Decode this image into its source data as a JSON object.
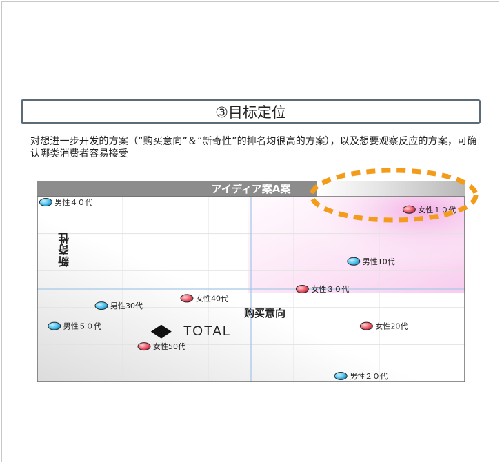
{
  "heading": "③目标定位",
  "description": "对想进一步开发的方案（“购买意向”＆“新奇性”的排名均很高的方案），以及想要观察反应的方案，可确认哪类消费者容易接受",
  "chart_data": {
    "type": "scatter",
    "title": "アイディア案A案",
    "xlabel": "购买意向",
    "ylabel": "新奇性",
    "xlim": [
      0,
      100
    ],
    "ylim": [
      0,
      100
    ],
    "grid": true,
    "series": [
      {
        "name": "男性",
        "color": "#4fc3f0",
        "points": [
          {
            "label": "男性４０代",
            "x": 2,
            "y": 97
          },
          {
            "label": "男性10代",
            "x": 74,
            "y": 65
          },
          {
            "label": "男性30代",
            "x": 15,
            "y": 41
          },
          {
            "label": "男性５０代",
            "x": 4,
            "y": 30
          },
          {
            "label": "男性２０代",
            "x": 71,
            "y": 3
          }
        ]
      },
      {
        "name": "女性",
        "color": "#ef5f6e",
        "points": [
          {
            "label": "女性１０代",
            "x": 87,
            "y": 93
          },
          {
            "label": "女性３０代",
            "x": 62,
            "y": 50
          },
          {
            "label": "女性40代",
            "x": 35,
            "y": 45
          },
          {
            "label": "女性20代",
            "x": 77,
            "y": 30
          },
          {
            "label": "女性50代",
            "x": 25,
            "y": 19
          }
        ]
      }
    ],
    "total": {
      "label": "TOTAL",
      "x": 29,
      "y": 27
    }
  }
}
